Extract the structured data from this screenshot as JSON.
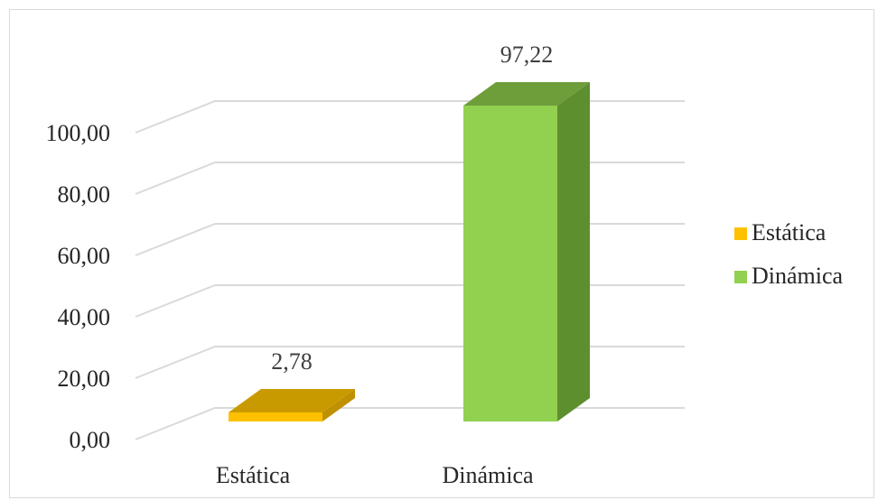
{
  "chart_data": {
    "type": "bar",
    "style": "3d-column",
    "categories": [
      "Estática",
      "Dinámica"
    ],
    "values": [
      2.78,
      97.22
    ],
    "value_labels": [
      "2,78",
      "97,22"
    ],
    "ylim": [
      0,
      100
    ],
    "y_ticks": [
      0,
      20,
      40,
      60,
      80,
      100
    ],
    "y_tick_labels": [
      "0,00",
      "20,00",
      "40,00",
      "60,00",
      "80,00",
      "100,00"
    ],
    "grid": true,
    "legend": {
      "placement": "right",
      "entries": [
        "Estática",
        "Dinámica"
      ]
    },
    "colors": {
      "front": [
        "#ffc000",
        "#92d050"
      ],
      "side": [
        "#bf9000",
        "#5e8f2f"
      ],
      "top": [
        "#c99a00",
        "#6e9e3a"
      ],
      "grid": "#d9d9d9"
    }
  }
}
